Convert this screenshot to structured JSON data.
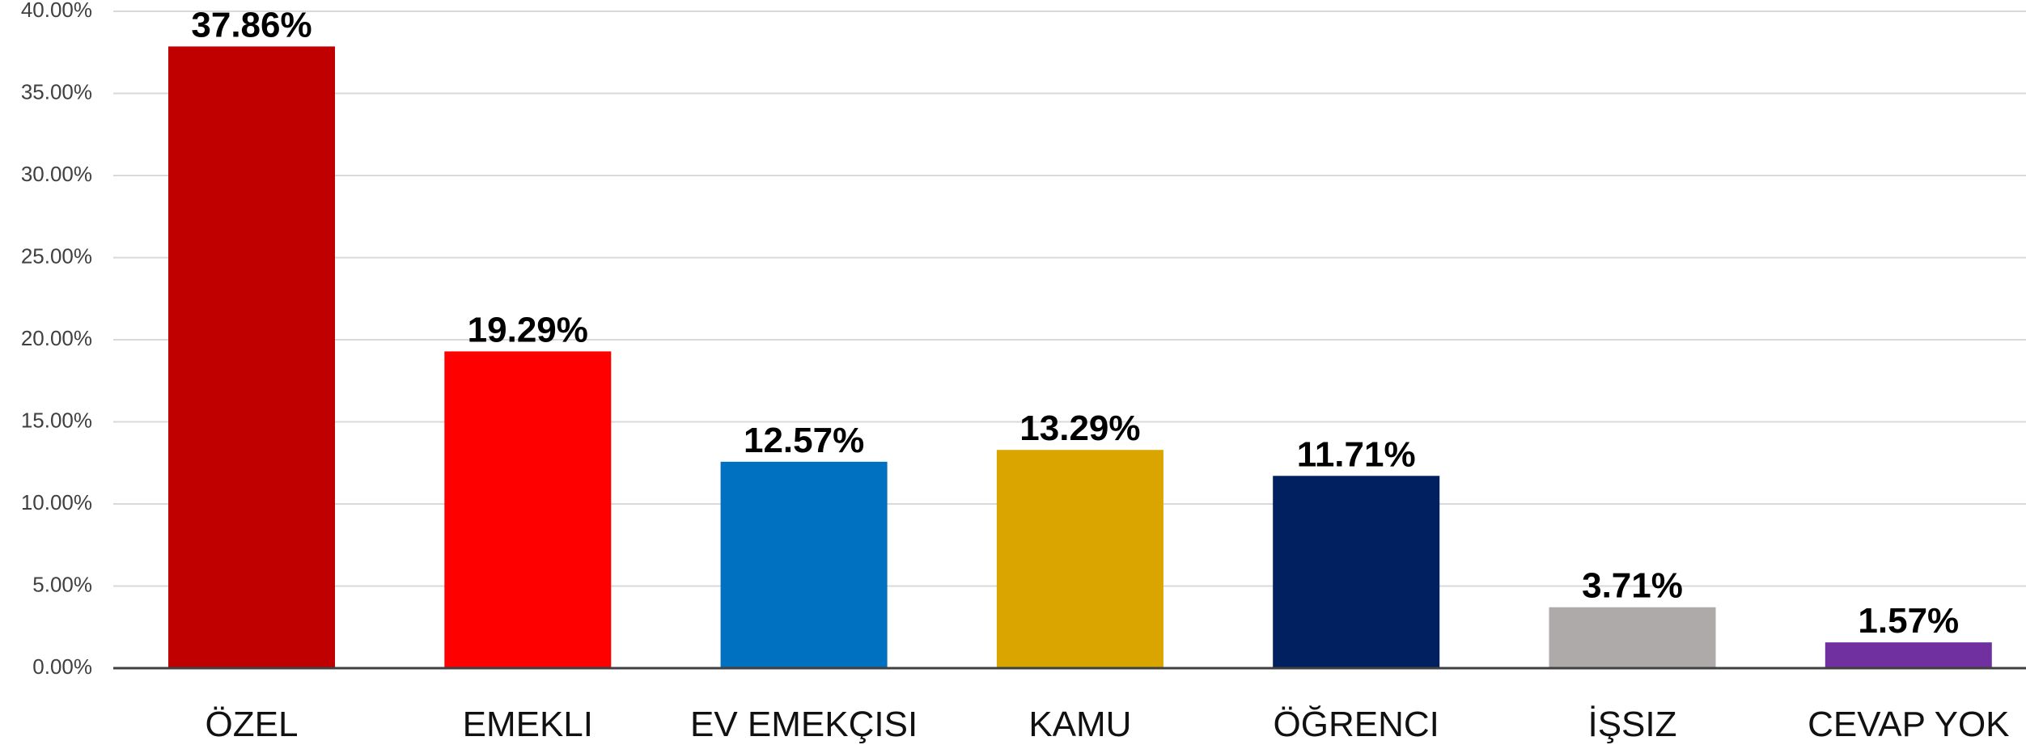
{
  "chart_data": {
    "type": "bar",
    "categories": [
      "ÖZEL",
      "EMEKLI",
      "EV EMEKÇISI",
      "KAMU",
      "ÖĞRENCI",
      "İŞSIZ",
      "CEVAP YOK"
    ],
    "values": [
      37.86,
      19.29,
      12.57,
      13.29,
      11.71,
      3.71,
      1.57
    ],
    "value_labels": [
      "37.86%",
      "19.29%",
      "12.57%",
      "13.29%",
      "11.71%",
      "3.71%",
      "1.57%"
    ],
    "colors": [
      "#c00000",
      "#ff0000",
      "#0070c0",
      "#dba500",
      "#002060",
      "#aeaaaa",
      "#7030a0"
    ],
    "ylim": [
      0,
      40
    ],
    "yticks": [
      {
        "value": 0,
        "label": "0.00%"
      },
      {
        "value": 5,
        "label": "5.00%"
      },
      {
        "value": 10,
        "label": "10.00%"
      },
      {
        "value": 15,
        "label": "15.00%"
      },
      {
        "value": 20,
        "label": "20.00%"
      },
      {
        "value": 25,
        "label": "25.00%"
      },
      {
        "value": 30,
        "label": "30.00%"
      },
      {
        "value": 35,
        "label": "35.00%"
      },
      {
        "value": 40,
        "label": "40.00%"
      }
    ],
    "grid": true
  }
}
